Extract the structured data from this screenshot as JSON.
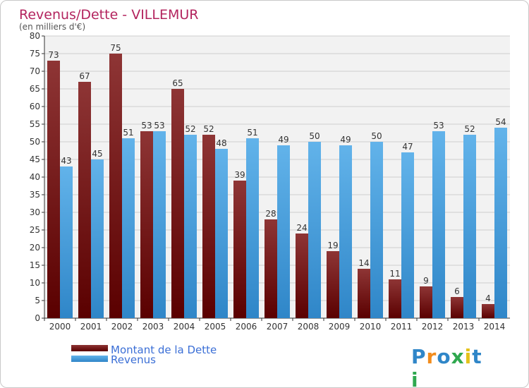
{
  "colors": {
    "dette_top": "#8e3535",
    "dette_bottom": "#5a0000",
    "revenus_top": "#62b3ea",
    "revenus_bottom": "#2f86c8",
    "title": "#b3245e",
    "legend_text": "#3b6fd6",
    "axis": "#333333",
    "grid": "#cfcfcf",
    "plot_bg": "#f2f2f2"
  },
  "logo": {
    "letters": [
      "P",
      "r",
      "o",
      "x",
      "i",
      "t",
      "i"
    ],
    "letter_colors": [
      "#2f86c8",
      "#f28c1c",
      "#2f86c8",
      "#2fa84f",
      "#e4c21a",
      "#2f86c8",
      "#2fa84f"
    ]
  },
  "chart_data": {
    "type": "bar",
    "title": "Revenus/Dette - VILLEMUR",
    "subtitle": "(en milliers d'€)",
    "categories": [
      "2000",
      "2001",
      "2002",
      "2003",
      "2004",
      "2005",
      "2006",
      "2007",
      "2008",
      "2009",
      "2010",
      "2011",
      "2012",
      "2013",
      "2014"
    ],
    "series": [
      {
        "name": "Montant de la Dette",
        "values": [
          73,
          67,
          75,
          53,
          65,
          52,
          39,
          28,
          24,
          19,
          14,
          11,
          9,
          6,
          4
        ]
      },
      {
        "name": "Revenus",
        "values": [
          43,
          45,
          51,
          53,
          52,
          48,
          51,
          49,
          50,
          49,
          50,
          47,
          53,
          52,
          54
        ]
      }
    ],
    "ylim": [
      0,
      80
    ],
    "yticks": [
      0,
      5,
      10,
      15,
      20,
      25,
      30,
      35,
      40,
      45,
      50,
      55,
      60,
      65,
      70,
      75,
      80
    ],
    "grid": true,
    "legend": "bottom-left"
  }
}
